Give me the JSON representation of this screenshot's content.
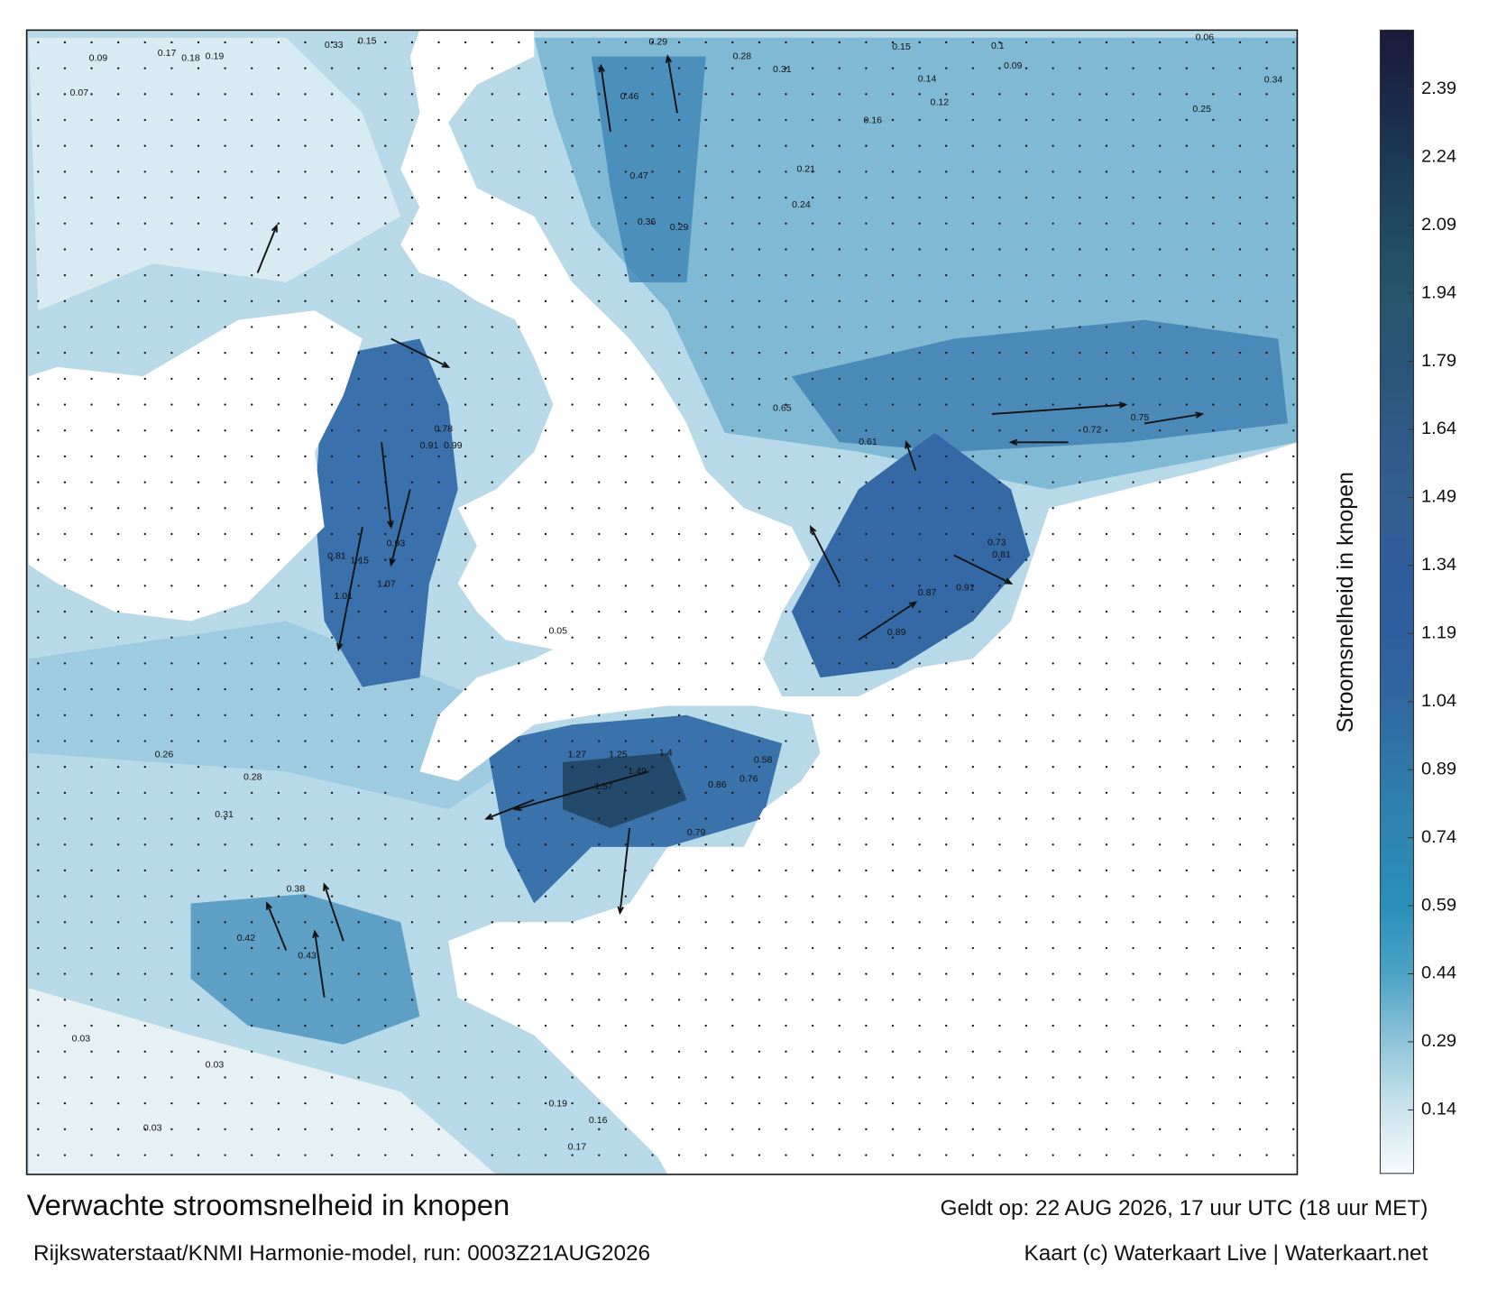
{
  "map": {
    "title": "Verwachte stroomsnelheid in knopen",
    "subtitle": "Rijkswaterstaat/KNMI Harmonie-model, run: 0003Z21AUG2026",
    "valid_time": "Geldt op: 22 AUG 2026, 17 uur UTC (18 uur MET)",
    "credit": "Kaart (c) Waterkaart Live | Waterkaart.net",
    "colorbar": {
      "label": "Stroomsnelheid in knopen",
      "range": [
        0,
        2.52
      ],
      "ticks": [
        0.14,
        0.29,
        0.44,
        0.59,
        0.74,
        0.89,
        1.04,
        1.19,
        1.34,
        1.49,
        1.64,
        1.79,
        1.94,
        2.09,
        2.24,
        2.39
      ],
      "colors": [
        "#f7fbfd",
        "#c9e2ec",
        "#8cc3d8",
        "#4aa1c4",
        "#2a8fba",
        "#2e86b0",
        "#2f79a8",
        "#30689f",
        "#2f5ea0",
        "#2f5c9c",
        "#335f8f",
        "#2f5a86",
        "#2a5578",
        "#27566c",
        "#214a62",
        "#1c3a56",
        "#1a2a48",
        "#1a1a38"
      ]
    },
    "labels": [
      "0.17",
      "0.18",
      "0.19",
      "0.09",
      "0.07",
      "0.15",
      "0.33",
      "0.29",
      "0.28",
      "0.31",
      "0.46",
      "0.47",
      "0.36",
      "0.29",
      "0.24",
      "0.15",
      "0.14",
      "0.12",
      "0.1",
      "0.09",
      "0.25",
      "0.34",
      "0.16",
      "0.21",
      "0.99",
      "0.91",
      "0.78",
      "1.15",
      "1.07",
      "1.01",
      "0.93",
      "0.81",
      "1.27",
      "1.25",
      "1.4",
      "1.57",
      "1.49",
      "0.58",
      "0.76",
      "0.86",
      "0.79",
      "0.65",
      "0.75",
      "0.72",
      "0.61",
      "0.89",
      "0.87",
      "0.91",
      "0.81",
      "0.73",
      "0.43",
      "0.42",
      "0.38",
      "0.31",
      "0.28",
      "0.26",
      "0.03",
      "0.03",
      "0.03",
      "0.17",
      "0.16",
      "0.19",
      "0.05",
      "0.06"
    ]
  }
}
